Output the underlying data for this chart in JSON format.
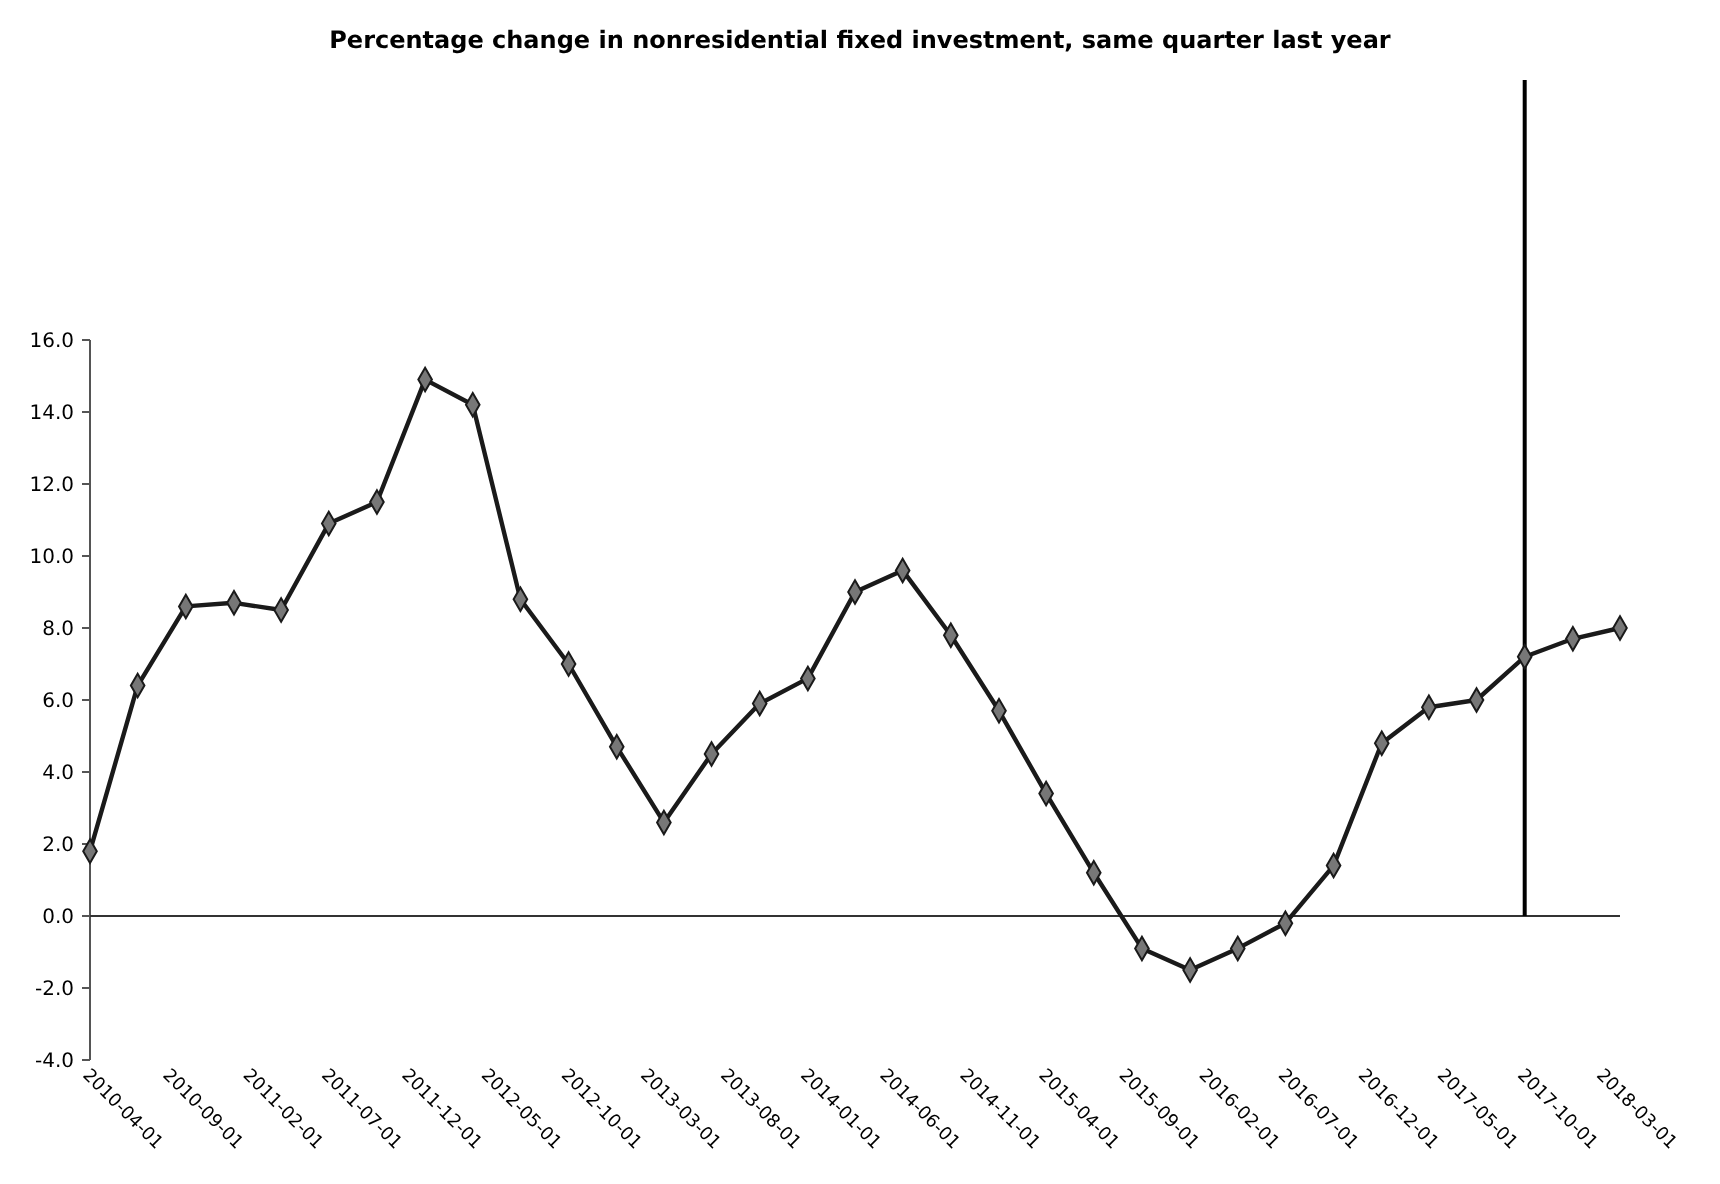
{
  "chart_data": {
    "type": "line",
    "title": "Percentage change in nonresidential  fixed investment, same quarter last year",
    "x": [
      "2010-04-01",
      "2010-07-01",
      "2010-10-01",
      "2011-01-01",
      "2011-04-01",
      "2011-07-01",
      "2011-10-01",
      "2012-01-01",
      "2012-04-01",
      "2012-07-01",
      "2012-10-01",
      "2013-01-01",
      "2013-04-01",
      "2013-07-01",
      "2013-10-01",
      "2014-01-01",
      "2014-04-01",
      "2014-07-01",
      "2014-10-01",
      "2015-01-01",
      "2015-04-01",
      "2015-07-01",
      "2015-10-01",
      "2016-01-01",
      "2016-04-01",
      "2016-07-01",
      "2016-10-01",
      "2017-01-01",
      "2017-04-01",
      "2017-07-01",
      "2017-10-01",
      "2018-01-01",
      "2018-04-01"
    ],
    "series": [
      {
        "color": "#1a1a1a",
        "values": [
          1.8,
          6.4,
          8.6,
          8.7,
          8.5,
          10.9,
          11.5,
          14.9,
          14.2,
          8.8,
          7.0,
          4.7,
          2.6,
          4.5,
          5.9,
          6.6,
          9.0,
          9.6,
          7.8,
          5.7,
          3.4,
          1.2,
          -0.9,
          -1.5,
          -0.9,
          -0.2,
          1.4,
          4.8,
          5.8,
          6.0,
          7.2,
          7.7,
          8.0
        ]
      }
    ],
    "xlim": [
      "2010-04-01",
      "2018-04-01"
    ],
    "xticks": [
      {
        "value": "2010-04-01",
        "label": "2010-04-01"
      },
      {
        "value": "2010-09-01",
        "label": "2010-09-01"
      },
      {
        "value": "2011-02-01",
        "label": "2011-02-01"
      },
      {
        "value": "2011-07-01",
        "label": "2011-07-01"
      },
      {
        "value": "2011-12-01",
        "label": "2011-12-01"
      },
      {
        "value": "2012-05-01",
        "label": "2012-05-01"
      },
      {
        "value": "2012-10-01",
        "label": "2012-10-01"
      },
      {
        "value": "2013-03-01",
        "label": "2013-03-01"
      },
      {
        "value": "2013-08-01",
        "label": "2013-08-01"
      },
      {
        "value": "2014-01-01",
        "label": "2014-01-01"
      },
      {
        "value": "2014-06-01",
        "label": "2014-06-01"
      },
      {
        "value": "2014-11-01",
        "label": "2014-11-01"
      },
      {
        "value": "2015-04-01",
        "label": "2015-04-01"
      },
      {
        "value": "2015-09-01",
        "label": "2015-09-01"
      },
      {
        "value": "2016-02-01",
        "label": "2016-02-01"
      },
      {
        "value": "2016-07-01",
        "label": "2016-07-01"
      },
      {
        "value": "2016-12-01",
        "label": "2016-12-01"
      },
      {
        "value": "2017-05-01",
        "label": "2017-05-01"
      },
      {
        "value": "2017-10-01",
        "label": "2017-10-01"
      },
      {
        "value": "2018-03-01",
        "label": "2018-03-01"
      }
    ],
    "ylim": [
      -4,
      16
    ],
    "yticks": [
      {
        "value": -4,
        "label": "-4.0"
      },
      {
        "value": -2,
        "label": "-2.0"
      },
      {
        "value": 0,
        "label": "0.0"
      },
      {
        "value": 2,
        "label": "2.0"
      },
      {
        "value": 4,
        "label": "4.0"
      },
      {
        "value": 6,
        "label": "6.0"
      },
      {
        "value": 8,
        "label": "8.0"
      },
      {
        "value": 10,
        "label": "10.0"
      },
      {
        "value": 12,
        "label": "12.0"
      },
      {
        "value": 14,
        "label": "14.0"
      },
      {
        "value": 16,
        "label": "16.0"
      }
    ],
    "ref_lines": [
      {
        "axis": "x",
        "value": "2017-10-01",
        "color": "#000000"
      }
    ],
    "marker": "diamond",
    "line_style": "solid"
  }
}
